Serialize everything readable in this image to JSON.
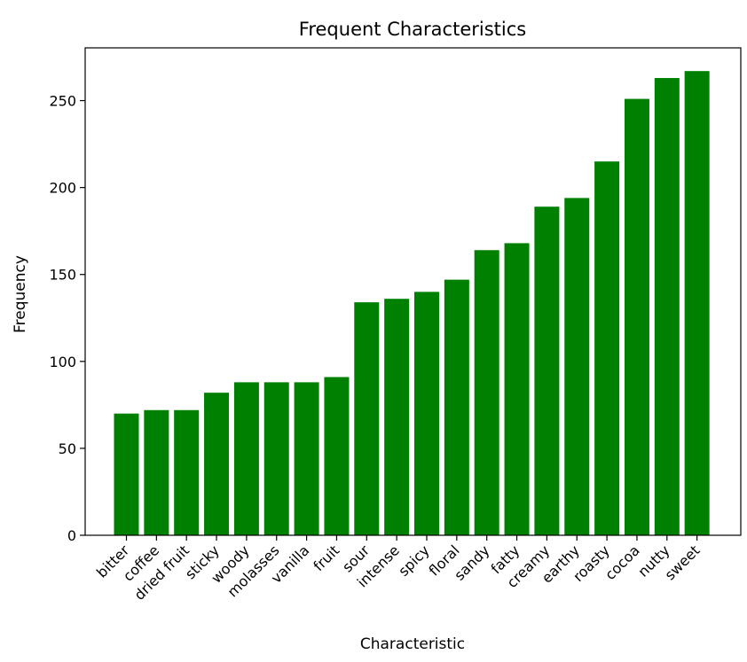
{
  "chart_data": {
    "type": "bar",
    "title": "Frequent Characteristics",
    "xlabel": "Characteristic",
    "ylabel": "Frequency",
    "categories": [
      "bitter",
      "coffee",
      "dried fruit",
      "sticky",
      "woody",
      "molasses",
      "vanilla",
      "fruit",
      "sour",
      "intense",
      "spicy",
      "floral",
      "sandy",
      "fatty",
      "creamy",
      "earthy",
      "roasty",
      "cocoa",
      "nutty",
      "sweet"
    ],
    "values": [
      70,
      72,
      72,
      82,
      88,
      88,
      88,
      91,
      134,
      136,
      140,
      147,
      164,
      168,
      189,
      194,
      215,
      251,
      263,
      267
    ],
    "yticks": [
      0,
      50,
      100,
      150,
      200,
      250
    ],
    "ylim": [
      0,
      280.35
    ],
    "grid": false,
    "bar_color": "#008000"
  }
}
